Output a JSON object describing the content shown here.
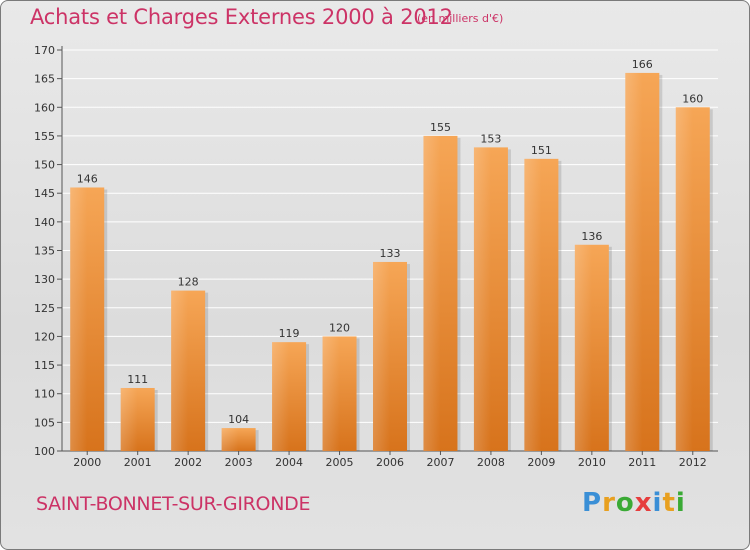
{
  "title": "Achats et Charges Externes 2000 à 2012",
  "subtitle": "(en milliers d'€)",
  "place": "SAINT-BONNET-SUR-GIRONDE",
  "logo": {
    "text": "Proxiti",
    "letters": [
      "P",
      "r",
      "o",
      "x",
      "i",
      "t",
      "i"
    ],
    "colors": [
      "#3a8fd6",
      "#e8a020",
      "#3aaa35",
      "#e63d3d",
      "#3a8fd6",
      "#e8a020",
      "#3aaa35"
    ]
  },
  "colors": {
    "bar_light": "#f4a24c",
    "bar_dark": "#d9761f",
    "accent": "#cc3366",
    "grid": "#ffffff"
  },
  "chart_data": {
    "type": "bar",
    "title": "Achats et Charges Externes 2000 à 2012",
    "subtitle": "(en milliers d'€)",
    "categories": [
      "2000",
      "2001",
      "2002",
      "2003",
      "2004",
      "2005",
      "2006",
      "2007",
      "2008",
      "2009",
      "2010",
      "2011",
      "2012"
    ],
    "values": [
      146,
      111,
      128,
      104,
      119,
      120,
      133,
      155,
      153,
      151,
      136,
      166,
      160
    ],
    "data_labels": [
      "146",
      "111",
      "128",
      "104",
      "119",
      "120",
      "133",
      "155",
      "153",
      "151",
      "136",
      "166",
      "160"
    ],
    "ylim": [
      100,
      170
    ],
    "yticks": [
      "100",
      "105",
      "110",
      "115",
      "120",
      "125",
      "130",
      "135",
      "140",
      "145",
      "150",
      "155",
      "160",
      "165",
      "170"
    ],
    "grid": true,
    "xlabel": "",
    "ylabel": ""
  }
}
